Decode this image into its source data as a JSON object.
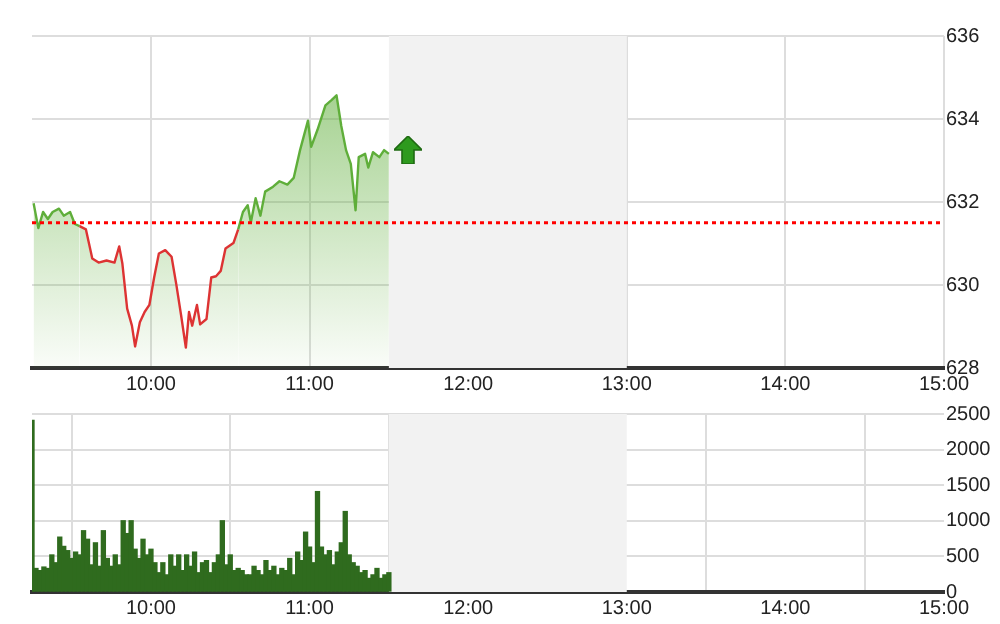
{
  "chart_data": [
    {
      "type": "area",
      "xlim": [
        9.25,
        15
      ],
      "xticks": [
        {
          "value": 10,
          "label": "10:00"
        },
        {
          "value": 11,
          "label": "11:00"
        },
        {
          "value": 12,
          "label": "12:00"
        },
        {
          "value": 13,
          "label": "13:00"
        },
        {
          "value": 14,
          "label": "14:00"
        },
        {
          "value": 15,
          "label": "15:00"
        }
      ],
      "ylim": [
        628,
        636
      ],
      "yticks": [
        628,
        630,
        632,
        634,
        636
      ],
      "grid": true,
      "x": [
        9.26,
        9.29,
        9.32,
        9.35,
        9.38,
        9.42,
        9.45,
        9.49,
        9.52,
        9.55,
        9.59,
        9.63,
        9.67,
        9.72,
        9.77,
        9.8,
        9.82,
        9.85,
        9.88,
        9.9,
        9.93,
        9.96,
        9.99,
        10.02,
        10.05,
        10.09,
        10.13,
        10.16,
        10.19,
        10.22,
        10.24,
        10.26,
        10.29,
        10.31,
        10.35,
        10.38,
        10.41,
        10.44,
        10.47,
        10.52,
        10.55,
        10.58,
        10.61,
        10.63,
        10.66,
        10.69,
        10.72,
        10.77,
        10.81,
        10.86,
        10.9,
        10.94,
        10.99,
        11.01,
        11.05,
        11.1,
        11.14,
        11.17,
        11.2,
        11.23,
        11.26,
        11.29,
        11.31,
        11.35,
        11.37,
        11.4,
        11.44,
        11.47,
        11.5
      ],
      "series": [
        {
          "color": "#5fae3a",
          "values": [
            631.97,
            631.37,
            631.76,
            631.59,
            631.76,
            631.84,
            631.67,
            631.76,
            631.47,
            631.42,
            631.34,
            630.64,
            630.54,
            630.59,
            630.54,
            630.93,
            630.51,
            629.43,
            629.02,
            628.52,
            629.1,
            629.35,
            629.52,
            630.18,
            630.76,
            630.84,
            630.68,
            630.01,
            629.27,
            628.49,
            629.35,
            629.02,
            629.52,
            629.05,
            629.18,
            630.18,
            630.21,
            630.34,
            630.88,
            631.01,
            631.34,
            631.76,
            631.92,
            631.51,
            632.09,
            631.67,
            632.25,
            632.37,
            632.5,
            632.42,
            632.58,
            633.25,
            633.96,
            633.33,
            633.74,
            634.33,
            634.46,
            634.57,
            633.83,
            633.25,
            632.92,
            631.8,
            633.08,
            633.16,
            632.83,
            633.2,
            633.08,
            633.25,
            633.16
          ],
          "colors": [
            "#5fae3a",
            "#5fae3a",
            "#5fae3a",
            "#5fae3a",
            "#5fae3a",
            "#5fae3a",
            "#5fae3a",
            "#5fae3a",
            "#5fae3a",
            "#5fae3a",
            "#dd3333",
            "#dd3333",
            "#dd3333",
            "#dd3333",
            "#dd3333",
            "#dd3333",
            "#dd3333",
            "#dd3333",
            "#dd3333",
            "#dd3333",
            "#dd3333",
            "#dd3333",
            "#dd3333",
            "#dd3333",
            "#dd3333",
            "#dd3333",
            "#dd3333",
            "#dd3333",
            "#dd3333",
            "#dd3333",
            "#dd3333",
            "#dd3333",
            "#dd3333",
            "#dd3333",
            "#dd3333",
            "#dd3333",
            "#dd3333",
            "#dd3333",
            "#dd3333",
            "#dd3333",
            "#dd3333",
            "#5fae3a",
            "#5fae3a",
            "#5fae3a",
            "#5fae3a",
            "#5fae3a",
            "#5fae3a",
            "#5fae3a",
            "#5fae3a",
            "#5fae3a",
            "#5fae3a",
            "#5fae3a",
            "#5fae3a",
            "#5fae3a",
            "#5fae3a",
            "#5fae3a",
            "#5fae3a",
            "#5fae3a",
            "#5fae3a",
            "#5fae3a",
            "#5fae3a",
            "#5fae3a",
            "#5fae3a",
            "#5fae3a",
            "#5fae3a",
            "#5fae3a",
            "#5fae3a",
            "#5fae3a",
            "#5fae3a"
          ]
        }
      ],
      "ref_lines": [
        {
          "axis": "y",
          "value": 631.5,
          "color": "#ff0000",
          "line_style": "dotted"
        }
      ],
      "bands": [
        {
          "axis": "x",
          "from": 11.5,
          "to": 13,
          "color": "#f2f2f2"
        }
      ]
    },
    {
      "type": "bar",
      "xlim": [
        9.25,
        15
      ],
      "xticks": [
        {
          "value": 10,
          "label": "10:00"
        },
        {
          "value": 11,
          "label": "11:00"
        },
        {
          "value": 12,
          "label": "12:00"
        },
        {
          "value": 13,
          "label": "13:00"
        },
        {
          "value": 14,
          "label": "14:00"
        },
        {
          "value": 15,
          "label": "15:00"
        }
      ],
      "ylim": [
        0,
        2500
      ],
      "yticks": [
        0,
        500,
        1000,
        1500,
        2000,
        2500
      ],
      "grid": true,
      "x": [
        9.25,
        9.275,
        9.3,
        9.325,
        9.35,
        9.375,
        9.4,
        9.425,
        9.45,
        9.475,
        9.5,
        9.525,
        9.55,
        9.575,
        9.6,
        9.625,
        9.65,
        9.675,
        9.7,
        9.725,
        9.75,
        9.775,
        9.8,
        9.825,
        9.85,
        9.875,
        9.9,
        9.925,
        9.95,
        9.975,
        10,
        10.025,
        10.05,
        10.075,
        10.1,
        10.125,
        10.15,
        10.175,
        10.2,
        10.225,
        10.25,
        10.275,
        10.3,
        10.325,
        10.35,
        10.375,
        10.4,
        10.425,
        10.45,
        10.475,
        10.5,
        10.525,
        10.55,
        10.575,
        10.6,
        10.625,
        10.65,
        10.675,
        10.7,
        10.725,
        10.75,
        10.775,
        10.8,
        10.825,
        10.85,
        10.875,
        10.9,
        10.925,
        10.95,
        10.975,
        11,
        11.025,
        11.05,
        11.075,
        11.1,
        11.125,
        11.15,
        11.175,
        11.2,
        11.225,
        11.25,
        11.275,
        11.3,
        11.325,
        11.35,
        11.375,
        11.4,
        11.425,
        11.45,
        11.475,
        11.5
      ],
      "series": [
        {
          "color": "#2f6b1e",
          "values": [
            2410,
            330,
            300,
            350,
            330,
            520,
            410,
            770,
            640,
            580,
            470,
            560,
            520,
            860,
            740,
            380,
            690,
            360,
            860,
            470,
            360,
            520,
            380,
            1000,
            820,
            1000,
            600,
            470,
            740,
            520,
            600,
            410,
            270,
            410,
            240,
            520,
            360,
            520,
            300,
            520,
            360,
            560,
            270,
            410,
            440,
            270,
            410,
            520,
            1000,
            380,
            520,
            300,
            330,
            300,
            240,
            240,
            360,
            300,
            240,
            440,
            300,
            360,
            240,
            330,
            300,
            470,
            240,
            560,
            440,
            840,
            630,
            410,
            1410,
            630,
            520,
            580,
            380,
            560,
            690,
            1130,
            520,
            410,
            360,
            270,
            300,
            190,
            240,
            330,
            190,
            240,
            270
          ]
        }
      ],
      "bands": [
        {
          "axis": "x",
          "from": 11.5,
          "to": 13,
          "color": "#f2f2f2"
        }
      ]
    }
  ]
}
